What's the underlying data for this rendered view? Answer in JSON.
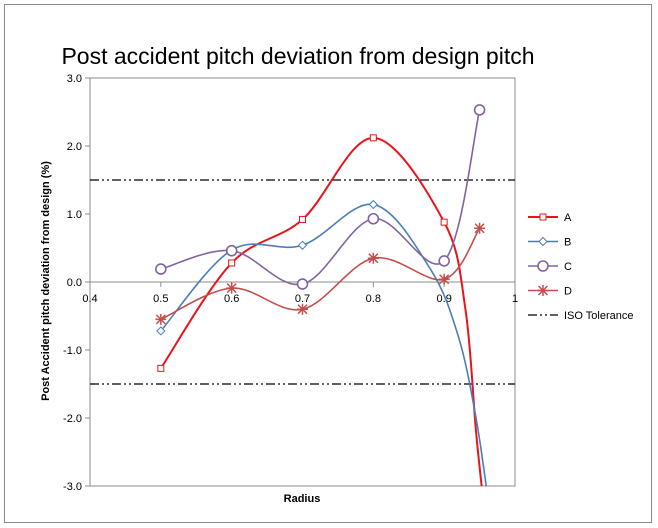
{
  "chart_data": {
    "type": "line",
    "title": "Post accident pitch deviation from design pitch",
    "xlabel": "Radius",
    "ylabel": "Post Accident pitch deviation from design (%)",
    "xlim": [
      0.4,
      1.0
    ],
    "ylim": [
      -3.0,
      3.0
    ],
    "x_ticks": [
      "0.4",
      "0.5",
      "0.6",
      "0.7",
      "0.8",
      "0.9",
      "1"
    ],
    "y_ticks": [
      "3.0",
      "2.0",
      "1.0",
      "0.0",
      "-1.0",
      "-2.0",
      "-3.0"
    ],
    "grid": false,
    "legend_position": "right",
    "series": [
      {
        "name": "A",
        "color": "#e8141c",
        "marker": "square",
        "line_width": 2,
        "x": [
          0.5,
          0.6,
          0.7,
          0.8,
          0.9
        ],
        "y": [
          -1.27,
          0.28,
          0.92,
          2.12,
          0.88
        ],
        "tail": [
          [
            0.93,
            -0.4
          ],
          [
            0.945,
            -2.2
          ],
          [
            0.955,
            -3.2
          ]
        ]
      },
      {
        "name": "B",
        "color": "#4a7ebb",
        "marker": "diamond",
        "line_width": 1.6,
        "x": [
          0.5,
          0.6,
          0.7,
          0.8
        ],
        "y": [
          -0.72,
          0.47,
          0.54,
          1.14
        ],
        "tail": [
          [
            0.88,
            0.2
          ],
          [
            0.92,
            -0.8
          ],
          [
            0.945,
            -2.0
          ],
          [
            0.962,
            -3.2
          ]
        ]
      },
      {
        "name": "C",
        "color": "#8064a2",
        "marker": "circle",
        "line_width": 1.6,
        "x": [
          0.5,
          0.6,
          0.7,
          0.8,
          0.9,
          0.95
        ],
        "y": [
          0.19,
          0.46,
          -0.03,
          0.93,
          0.31,
          2.53
        ]
      },
      {
        "name": "D",
        "color": "#c0504d",
        "marker": "star",
        "line_width": 1.6,
        "x": [
          0.5,
          0.6,
          0.7,
          0.8,
          0.9,
          0.95
        ],
        "y": [
          -0.55,
          -0.09,
          -0.4,
          0.35,
          0.04,
          0.79
        ]
      }
    ],
    "reference_lines": [
      {
        "name": "ISO Tolerance",
        "values": [
          1.5,
          -1.5
        ],
        "color": "#000000",
        "style": "dash-dot-dot"
      }
    ]
  }
}
